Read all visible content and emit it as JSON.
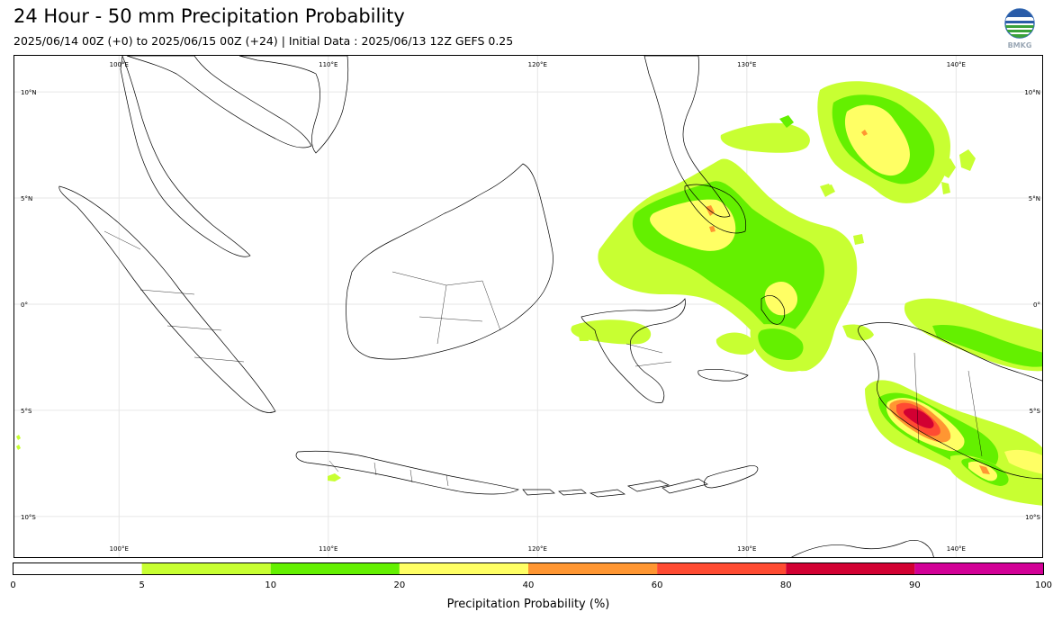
{
  "header": {
    "title": "24 Hour - 50 mm Precipitation Probability",
    "subtitle": "2025/06/14 00Z (+0) to 2025/06/15 00Z (+24) | Initial Data : 2025/06/13 12Z GEFS 0.25"
  },
  "logo": {
    "icon": "bmkg-logo-icon",
    "text": "BMKG"
  },
  "map": {
    "projection": "plate-carree",
    "lon_range": [
      95,
      144.2
    ],
    "lat_range": [
      -12.0,
      11.7
    ],
    "gridlines": true,
    "lon_labels_top": [
      "100°E",
      "110°E",
      "120°E",
      "130°E",
      "140°E"
    ],
    "lon_labels_bottom": [
      "100°E",
      "110°E",
      "120°E",
      "130°E",
      "140°E"
    ],
    "lat_labels_left": [
      "10°N",
      "5°N",
      "0°",
      "5°S",
      "10°S"
    ],
    "lat_labels_right": [
      "10°N",
      "5°N",
      "0°",
      "5°S",
      "10°S"
    ],
    "lon_ticks": [
      100,
      110,
      120,
      130,
      140
    ],
    "lat_ticks": [
      10,
      5,
      0,
      -5,
      -10
    ]
  },
  "colorbar": {
    "label": "Precipitation Probability (%)",
    "ticks": [
      "0",
      "5",
      "10",
      "20",
      "40",
      "60",
      "80",
      "90",
      "100"
    ],
    "colors": [
      "#ffffff",
      "#c8ff32",
      "#64f000",
      "#ffff64",
      "#ff9632",
      "#ff4b32",
      "#d20032",
      "#d20096"
    ]
  }
}
